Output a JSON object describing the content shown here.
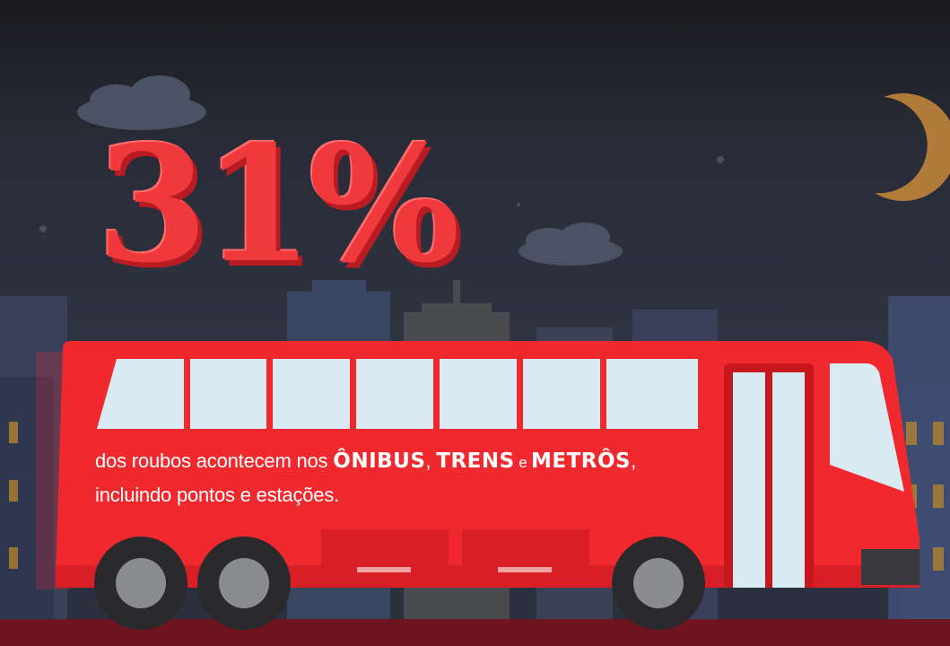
{
  "stat": {
    "value": "31%"
  },
  "caption": {
    "part1": "dos roubos acontecem nos ",
    "onibus": "ÔNIBUS",
    "comma1": ", ",
    "trens": "TRENS",
    "e": " e ",
    "metros": "METRÔS",
    "comma2": ",",
    "line2": "incluindo pontos e estações."
  },
  "colors": {
    "bus_red": "#f0292f",
    "window": "#d9eaf2",
    "sky": "#2f3442",
    "moon": "#d9953a"
  },
  "icons": [
    "moon-icon",
    "cloud-icon",
    "bus-illustration",
    "skyline"
  ]
}
